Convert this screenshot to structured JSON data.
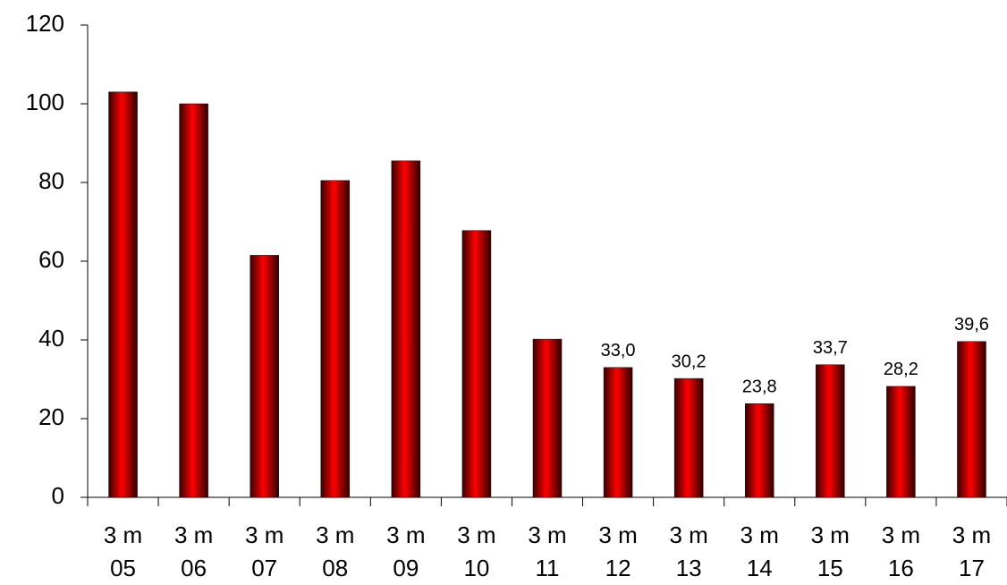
{
  "chart_data": {
    "type": "bar",
    "categories": [
      [
        "3 m",
        "05"
      ],
      [
        "3 m",
        "06"
      ],
      [
        "3 m",
        "07"
      ],
      [
        "3 m",
        "08"
      ],
      [
        "3 m",
        "09"
      ],
      [
        "3 m",
        "10"
      ],
      [
        "3 m",
        "11"
      ],
      [
        "3 m",
        "12"
      ],
      [
        "3 m",
        "13"
      ],
      [
        "3 m",
        "14"
      ],
      [
        "3 m",
        "15"
      ],
      [
        "3 m",
        "16"
      ],
      [
        "3 m",
        "17"
      ]
    ],
    "values": [
      103,
      100,
      61.5,
      80.5,
      85.5,
      67.8,
      40.2,
      33.0,
      30.2,
      23.8,
      33.7,
      28.2,
      39.6
    ],
    "value_labels": [
      null,
      null,
      null,
      null,
      null,
      null,
      null,
      "33,0",
      "30,2",
      "23,8",
      "33,7",
      "28,2",
      "39,6"
    ],
    "color": "#ff0000",
    "ylim": [
      0,
      120
    ],
    "yticks": [
      0,
      20,
      40,
      60,
      80,
      100,
      120
    ],
    "grid": false
  }
}
